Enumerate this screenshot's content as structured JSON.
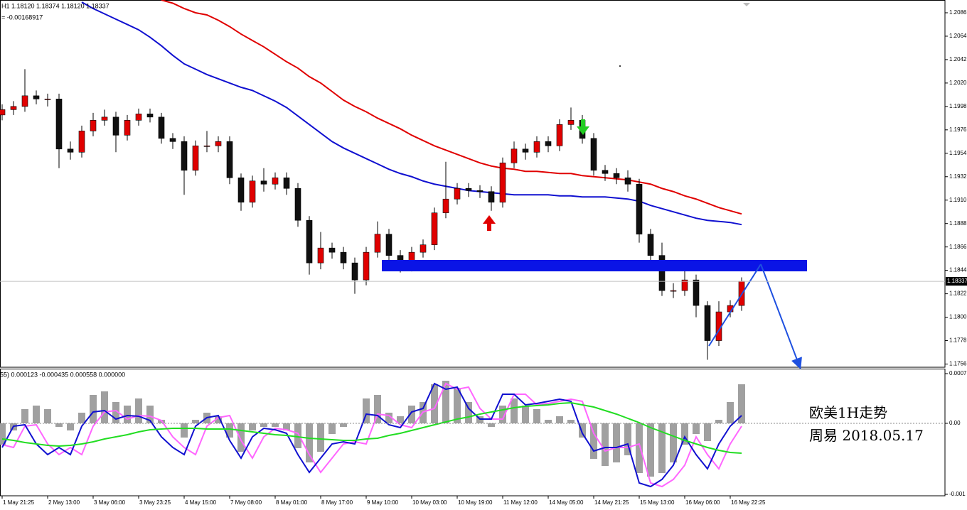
{
  "chart_data": [
    {
      "type": "candlestick",
      "title": "H1  1.18120 1.18374 1.18120 1.18337",
      "subtitle": "= -0.00168917",
      "annotations": [
        "欧美1H走势",
        "周易  2018.05.17"
      ],
      "categories": [
        "1 May 21:25",
        null,
        null,
        null,
        "2 May 13:00",
        null,
        null,
        null,
        "3 May 06:00",
        null,
        null,
        null,
        "3 May 23:25",
        null,
        null,
        null,
        "4 May 15:00",
        null,
        null,
        null,
        "7 May 08:00",
        null,
        null,
        null,
        "8 May 01:00",
        null,
        null,
        null,
        "8 May 17:00",
        null,
        null,
        null,
        "9 May 10:00",
        null,
        null,
        null,
        "10 May 03:00",
        null,
        null,
        null,
        "10 May 19:00",
        null,
        null,
        null,
        "11 May 12:00",
        null,
        null,
        null,
        "14 May 05:00",
        null,
        null,
        null,
        "14 May 21:25",
        null,
        null,
        null,
        "15 May 13:00",
        null,
        null,
        null,
        "16 May 06:00",
        null,
        null,
        null,
        "16 May 22:25",
        null
      ],
      "open": [
        1.199,
        1.1995,
        1.1998,
        1.2008,
        1.2005,
        1.2005,
        1.1958,
        1.1955,
        1.1975,
        1.1985,
        1.1988,
        1.1971,
        1.1985,
        1.1991,
        1.1988,
        1.1968,
        1.1965,
        1.1938,
        1.1961,
        1.1961,
        1.1965,
        1.1931,
        1.1908,
        1.1928,
        1.1925,
        1.1931,
        1.1921,
        1.1891,
        1.1851,
        1.1865,
        1.1861,
        1.1851,
        1.1835,
        1.1861,
        1.1878,
        1.1858,
        1.1848,
        1.1861,
        1.1868,
        1.1898,
        1.1911,
        1.1921,
        1.1919,
        1.1918,
        1.1908,
        1.1945,
        1.1958,
        1.1955,
        1.1965,
        1.1961,
        1.1981,
        1.1985,
        1.1968,
        1.1938,
        1.1935,
        1.1931,
        1.1925,
        1.1878,
        1.1858,
        1.1825,
        1.1825,
        1.1835,
        1.1811,
        1.1778,
        1.1805,
        1.1811
      ],
      "high": [
        1.2,
        1.2003,
        1.2033,
        1.2013,
        1.201,
        1.201,
        1.1965,
        1.198,
        1.1992,
        1.1995,
        1.1993,
        1.199,
        1.1996,
        1.1996,
        1.1992,
        1.1973,
        1.197,
        1.1966,
        1.1975,
        1.197,
        1.197,
        1.1935,
        1.1933,
        1.194,
        1.1936,
        1.1936,
        1.1926,
        1.1895,
        1.188,
        1.187,
        1.1866,
        1.1856,
        1.1866,
        1.189,
        1.1883,
        1.1863,
        1.1866,
        1.1873,
        1.1903,
        1.1946,
        1.1926,
        1.1926,
        1.1924,
        1.1923,
        1.195,
        1.1965,
        1.1963,
        1.197,
        1.197,
        1.1986,
        1.1997,
        1.199,
        1.1973,
        1.1943,
        1.194,
        1.1938,
        1.193,
        1.1883,
        1.187,
        1.1832,
        1.1845,
        1.184,
        1.1815,
        1.1815,
        1.1816,
        1.18374
      ],
      "low": [
        1.1985,
        1.199,
        1.1993,
        1.2,
        1.1998,
        1.194,
        1.1948,
        1.195,
        1.197,
        1.198,
        1.1955,
        1.1966,
        1.198,
        1.1983,
        1.1963,
        1.1958,
        1.1915,
        1.1933,
        1.1955,
        1.1955,
        1.1925,
        1.19,
        1.1903,
        1.1918,
        1.192,
        1.1915,
        1.1885,
        1.184,
        1.1845,
        1.1855,
        1.1845,
        1.1822,
        1.183,
        1.1856,
        1.185,
        1.1842,
        1.1843,
        1.1856,
        1.1863,
        1.1893,
        1.1906,
        1.1913,
        1.1912,
        1.19,
        1.1903,
        1.194,
        1.1948,
        1.195,
        1.1955,
        1.1956,
        1.1976,
        1.1963,
        1.1933,
        1.1928,
        1.1925,
        1.1918,
        1.187,
        1.185,
        1.182,
        1.1818,
        1.182,
        1.18,
        1.176,
        1.1773,
        1.18,
        1.1806
      ],
      "close": [
        1.1995,
        1.1998,
        1.2008,
        1.2005,
        1.2005,
        1.1958,
        1.1955,
        1.1975,
        1.1985,
        1.1988,
        1.1971,
        1.1985,
        1.1991,
        1.1988,
        1.1968,
        1.1965,
        1.1938,
        1.1961,
        1.1961,
        1.1965,
        1.1931,
        1.1908,
        1.1928,
        1.1925,
        1.1931,
        1.1921,
        1.1891,
        1.1851,
        1.1865,
        1.1861,
        1.1851,
        1.1835,
        1.1861,
        1.1878,
        1.1858,
        1.1848,
        1.1861,
        1.1868,
        1.1898,
        1.1911,
        1.1921,
        1.1919,
        1.1918,
        1.1908,
        1.1945,
        1.1958,
        1.1955,
        1.1965,
        1.1961,
        1.1981,
        1.1985,
        1.1968,
        1.1938,
        1.1935,
        1.1931,
        1.1925,
        1.1878,
        1.1858,
        1.1825,
        1.1825,
        1.1835,
        1.1811,
        1.1778,
        1.1805,
        1.1811,
        1.18337
      ],
      "up_color": "#e00000",
      "down_color": "#101010",
      "moving_averages": [
        {
          "color": "#e00000",
          "values": [
            null,
            null,
            null,
            null,
            null,
            null,
            null,
            null,
            null,
            null,
            null,
            null,
            null,
            null,
            1.2098,
            1.2095,
            1.209,
            1.2086,
            1.2084,
            1.2079,
            1.2073,
            1.2066,
            1.206,
            1.2054,
            1.2047,
            1.204,
            1.2034,
            1.2026,
            1.202,
            1.2012,
            1.2004,
            1.1998,
            1.1993,
            1.1987,
            1.1982,
            1.1977,
            1.1971,
            1.1966,
            1.1961,
            1.1957,
            1.1953,
            1.1949,
            1.1945,
            1.1942,
            1.194,
            1.1939,
            1.1937,
            1.1937,
            1.1936,
            1.1935,
            1.1935,
            1.1933,
            1.1932,
            1.1931,
            1.193,
            1.1929,
            1.1927,
            1.1925,
            1.1921,
            1.1918,
            1.1914,
            1.1911,
            1.1907,
            1.1903,
            1.19,
            1.1897
          ]
        },
        {
          "color": "#1010d0",
          "values": [
            null,
            null,
            null,
            null,
            null,
            null,
            null,
            1.2096,
            1.209,
            1.2085,
            1.208,
            1.2075,
            1.207,
            1.2063,
            1.2055,
            1.2046,
            1.2038,
            1.2033,
            1.2028,
            1.2024,
            1.202,
            1.2016,
            1.2013,
            1.2008,
            1.2003,
            1.1997,
            1.1989,
            1.1981,
            1.1973,
            1.1965,
            1.1959,
            1.1954,
            1.1949,
            1.1944,
            1.1939,
            1.1935,
            1.1932,
            1.1928,
            1.1925,
            1.1923,
            1.1921,
            1.1919,
            1.1918,
            1.1917,
            1.1916,
            1.1915,
            1.1915,
            1.1915,
            1.1915,
            1.1914,
            1.1914,
            1.1913,
            1.1913,
            1.1913,
            1.1912,
            1.1911,
            1.1909,
            1.1905,
            1.1902,
            1.1899,
            1.1896,
            1.1893,
            1.1891,
            1.189,
            1.1889,
            1.1887
          ]
        }
      ],
      "ylim": [
        1.1753,
        1.2098
      ],
      "yticks": [
        1.1756,
        1.1778,
        {
          "value": 1.18,
          "label": "1.1800"
        },
        1.1822,
        1.1844,
        1.1866,
        1.1888,
        {
          "value": 1.191,
          "label": "1.1910"
        },
        1.1932,
        1.1954,
        1.1976,
        1.1998,
        {
          "value": 1.202,
          "label": "1.2020"
        },
        1.2042,
        1.2064,
        1.2086
      ]
    },
    {
      "type": "macd",
      "title": "55) 0.000123 -0.000435 0.000558 0.000000",
      "histogram": {
        "color": "#a0a0a0",
        "values": [
          -0.0003,
          -0.0001,
          0.0002,
          0.00025,
          0.0002,
          -5e-05,
          -0.0001,
          0.00015,
          0.0004,
          0.00045,
          0.0003,
          0.00025,
          0.00035,
          0.00025,
          5e-05,
          0,
          -0.0002,
          5e-05,
          0.00015,
          0.0001,
          -0.0002,
          -0.0004,
          -0.0001,
          -5e-05,
          -5e-05,
          -0.0001,
          -0.00035,
          -0.00055,
          -0.0004,
          -0.00015,
          -5e-05,
          0,
          0.00035,
          0.0004,
          0.00015,
          0.0001,
          0.00025,
          0.0003,
          0.00055,
          0.0006,
          0.0005,
          0.0003,
          0.0001,
          -5e-05,
          0.00025,
          0.00035,
          0.00025,
          0.0002,
          5e-05,
          0.0001,
          5e-05,
          -0.0002,
          -0.0005,
          -0.0006,
          -0.00055,
          -0.00045,
          -0.0007,
          -0.00075,
          -0.0007,
          -0.00055,
          -0.0003,
          -0.00015,
          -0.00025,
          5e-05,
          0.0003,
          0.00055
        ]
      },
      "lines": [
        {
          "color": "#ff66ff",
          "values": [
            -0.0003,
            -0.00034,
            -4e-05,
            -2e-05,
            -0.00029,
            -0.00044,
            -0.00034,
            -0.00044,
            -4e-05,
            0.00016,
            0.00018,
            6e-05,
            0.00011,
            0.0001,
            4e-05,
            -0.00019,
            -0.00034,
            -0.00044,
            -4e-05,
            8e-05,
            0.00011,
            -0.00024,
            -0.00049,
            -0.00019,
            -7e-05,
            -9e-05,
            -0.00014,
            -0.00044,
            -0.00069,
            -0.00049,
            -0.00029,
            -0.00026,
            -0.00029,
            0.00013,
            0.00011,
            -2e-05,
            -6e-05,
            0.00016,
            0.00021,
            0.00056,
            0.00048,
            0.00051,
            0.00021,
            6e-05,
            6e-05,
            0.00041,
            0.00041,
            0.00026,
            0.00028,
            0.00031,
            0.00034,
            0.00031,
            -0.00014,
            -0.00039,
            -0.00034,
            -0.00034,
            -0.00029,
            -0.00084,
            -0.00089,
            -0.00079,
            -0.00059,
            -0.00019,
            -0.00044,
            -0.00064,
            -0.00029,
            -4e-05
          ]
        },
        {
          "color": "#1010d0",
          "values": [
            -0.00034,
            -4e-05,
            -2e-05,
            -0.00029,
            -0.00044,
            -0.00034,
            -0.00044,
            -4e-05,
            0.00016,
            0.00018,
            6e-05,
            0.00011,
            0.0001,
            4e-05,
            -0.00019,
            -0.00034,
            -0.00044,
            -4e-05,
            8e-05,
            0.00011,
            -0.00024,
            -0.00049,
            -0.00019,
            -7e-05,
            -9e-05,
            -0.00014,
            -0.00044,
            -0.00069,
            -0.00049,
            -0.00029,
            -0.00026,
            -0.00029,
            0.00013,
            0.00011,
            -2e-05,
            -6e-05,
            0.00016,
            0.00021,
            0.00056,
            0.00048,
            0.00051,
            0.00021,
            6e-05,
            6e-05,
            0.00041,
            0.00041,
            0.00026,
            0.00028,
            0.00031,
            0.00034,
            0.00031,
            -0.00014,
            -0.00039,
            -0.00034,
            -0.00034,
            -0.00029,
            -0.00084,
            -0.00089,
            -0.00079,
            -0.00059,
            -0.00019,
            -0.00044,
            -0.00064,
            -0.00029,
            -4e-05,
            0.00011
          ]
        },
        {
          "color": "#22dd22",
          "values": [
            -0.00022,
            -0.00024,
            -0.00027,
            -0.00029,
            -0.00031,
            -0.00032,
            -0.00031,
            -0.00029,
            -0.00026,
            -0.00022,
            -0.00019,
            -0.00016,
            -0.00012,
            -9e-05,
            -8e-05,
            -7e-05,
            -7e-05,
            -7e-05,
            -8e-05,
            -8e-05,
            -8e-05,
            -0.0001,
            -0.00012,
            -0.00014,
            -0.00016,
            -0.00017,
            -0.00019,
            -0.00021,
            -0.00022,
            -0.00023,
            -0.00024,
            -0.00024,
            -0.00022,
            -0.00021,
            -0.00017,
            -0.00014,
            -0.0001,
            -6e-05,
            -2e-05,
            2e-05,
            6e-05,
            9e-05,
            0.00013,
            0.00016,
            0.00019,
            0.00022,
            0.00024,
            0.00025,
            0.00026,
            0.00028,
            0.00029,
            0.00026,
            0.00023,
            0.00018,
            0.00013,
            7e-05,
            1e-05,
            -6e-05,
            -0.00012,
            -0.00018,
            -0.00024,
            -0.00029,
            -0.00034,
            -0.00038,
            -0.00041,
            -0.00042
          ]
        }
      ],
      "ylim": [
        -0.00102,
        0.00077
      ],
      "yticks": [
        0.0007,
        {
          "value": 0,
          "label": "0.00"
        },
        -0.001
      ]
    }
  ]
}
